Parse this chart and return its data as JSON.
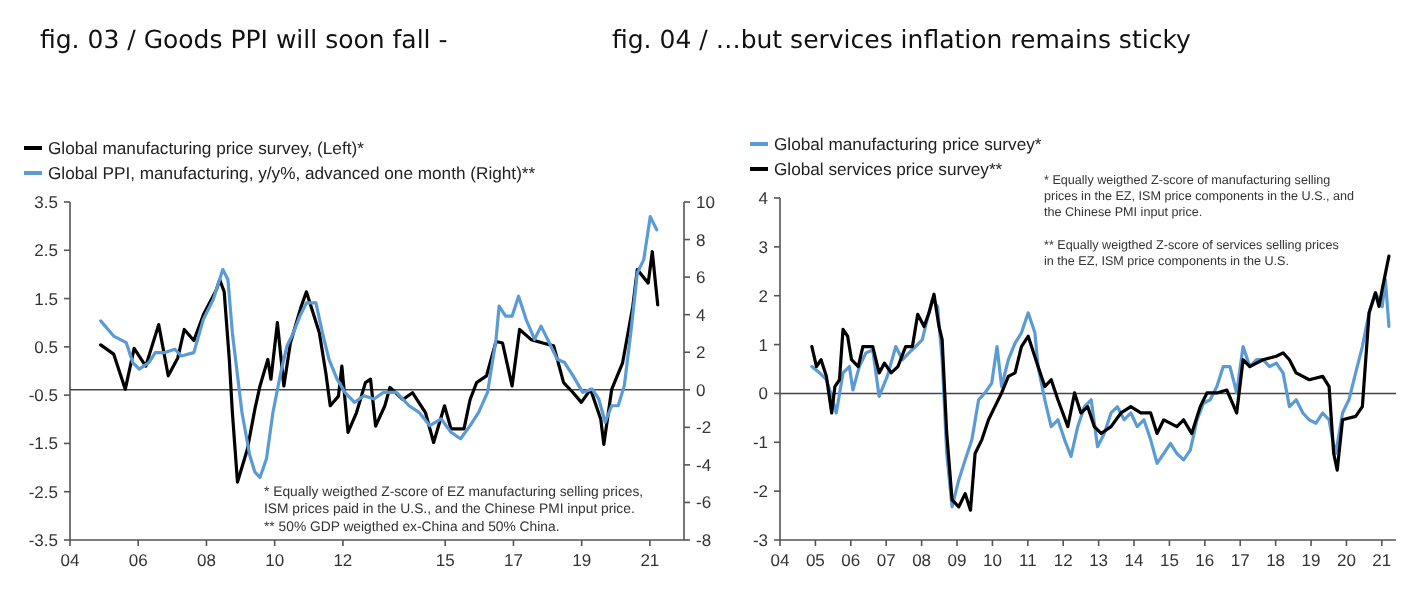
{
  "chart_data": [
    {
      "type": "line",
      "title": "fig. 03 / Goods PPI will soon fall -",
      "xlim": [
        2004,
        2022
      ],
      "xticks": [
        {
          "value": 2004,
          "label": "04"
        },
        {
          "value": 2006,
          "label": "06"
        },
        {
          "value": 2008,
          "label": "08"
        },
        {
          "value": 2010,
          "label": "10"
        },
        {
          "value": 2012,
          "label": "12"
        },
        {
          "value": 2015,
          "label": "15"
        },
        {
          "value": 2017,
          "label": "17"
        },
        {
          "value": 2019,
          "label": "19"
        },
        {
          "value": 2021,
          "label": "21"
        }
      ],
      "ylim": [
        -3.5,
        3.5
      ],
      "yticks": [
        -3.5,
        -2.5,
        -1.5,
        -0.5,
        0.5,
        1.5,
        2.5,
        3.5
      ],
      "y2lim": [
        -8,
        10
      ],
      "y2ticks": [
        -8,
        -6,
        -4,
        -2,
        0,
        2,
        4,
        6,
        8,
        10
      ],
      "legend": "top left",
      "ref_lines": [
        {
          "axis": "y2",
          "value": 0
        }
      ],
      "annotations": [
        "* Equally weigthed Z-score of EZ manufacturing selling prices, ISM prices paid in the U.S., and the Chinese PMI input price.",
        "** 50% GDP weigthed ex-China and 50% China."
      ],
      "series": [
        {
          "name": "Global manufacturing price survey, (Left)*",
          "color": "#000000",
          "x": [
            2004.9,
            2005.28,
            2005.62,
            2005.88,
            2006.22,
            2006.6,
            2006.88,
            2007.16,
            2007.35,
            2007.63,
            2007.92,
            2008.29,
            2008.39,
            2008.52,
            2008.67,
            2008.76,
            2008.91,
            2009.2,
            2009.42,
            2009.57,
            2009.8,
            2009.89,
            2010.08,
            2010.27,
            2010.46,
            2010.78,
            2010.93,
            2011.31,
            2011.5,
            2011.63,
            2011.87,
            2011.97,
            2012.15,
            2012.4,
            2012.66,
            2012.81,
            2012.96,
            2013.23,
            2013.38,
            2013.76,
            2014.04,
            2014.42,
            2014.66,
            2014.98,
            2015.17,
            2015.55,
            2015.73,
            2015.92,
            2016.21,
            2016.49,
            2016.68,
            2016.96,
            2017.18,
            2017.52,
            2017.86,
            2018.18,
            2018.47,
            2018.75,
            2018.99,
            2019.26,
            2019.56,
            2019.65,
            2019.88,
            2020.2,
            2020.5,
            2020.63,
            2020.95,
            2021.07,
            2021.23
          ],
          "values": [
            0.54,
            0.35,
            -0.38,
            0.47,
            0.1,
            0.96,
            -0.1,
            0.27,
            0.86,
            0.63,
            1.18,
            1.68,
            1.89,
            1.64,
            0.24,
            -0.86,
            -2.3,
            -1.62,
            -0.79,
            -0.31,
            0.24,
            -0.17,
            1.0,
            -0.31,
            0.58,
            1.34,
            1.64,
            0.79,
            -0.04,
            -0.72,
            -0.52,
            0.1,
            -1.27,
            -0.86,
            -0.24,
            -0.17,
            -1.14,
            -0.72,
            -0.34,
            -0.59,
            -0.45,
            -0.86,
            -1.48,
            -0.72,
            -1.2,
            -1.2,
            -0.59,
            -0.24,
            -0.1,
            0.61,
            0.58,
            -0.31,
            0.86,
            0.65,
            0.58,
            0.52,
            -0.24,
            -0.45,
            -0.65,
            -0.38,
            -1.0,
            -1.52,
            -0.38,
            0.17,
            1.34,
            2.1,
            1.82,
            2.47,
            1.37
          ]
        },
        {
          "name": "Global PPI, manufacturing, y/y%, advanced one month (Right)**",
          "color": "#5b9bd5",
          "axis": "y2",
          "x": [
            2004.9,
            2005.28,
            2005.65,
            2005.84,
            2006.03,
            2006.31,
            2006.5,
            2006.78,
            2007.07,
            2007.26,
            2007.63,
            2007.91,
            2008.2,
            2008.48,
            2008.63,
            2008.76,
            2009.04,
            2009.27,
            2009.42,
            2009.57,
            2009.76,
            2009.95,
            2010.18,
            2010.36,
            2010.55,
            2010.74,
            2010.93,
            2011.21,
            2011.4,
            2011.59,
            2011.83,
            2012.06,
            2012.34,
            2012.62,
            2012.91,
            2013.19,
            2013.57,
            2013.94,
            2014.23,
            2014.55,
            2014.88,
            2015.17,
            2015.45,
            2015.73,
            2015.98,
            2016.24,
            2016.49,
            2016.58,
            2016.77,
            2016.96,
            2017.15,
            2017.37,
            2017.62,
            2017.81,
            2018.0,
            2018.28,
            2018.5,
            2018.75,
            2019.03,
            2019.31,
            2019.5,
            2019.69,
            2019.88,
            2020.07,
            2020.25,
            2020.44,
            2020.63,
            2020.82,
            2021.01,
            2021.2
          ],
          "values": [
            3.67,
            2.86,
            2.51,
            1.45,
            1.1,
            1.45,
            1.98,
            1.98,
            2.16,
            1.8,
            1.98,
            3.75,
            4.81,
            6.4,
            5.87,
            3.04,
            -1.2,
            -3.5,
            -4.38,
            -4.66,
            -3.67,
            -1.2,
            0.92,
            2.33,
            3.04,
            3.92,
            4.63,
            4.63,
            3.04,
            1.63,
            0.57,
            -0.14,
            -0.67,
            -0.32,
            -0.49,
            -0.14,
            -0.14,
            -0.85,
            -1.2,
            -1.91,
            -1.55,
            -2.26,
            -2.61,
            -1.91,
            -1.2,
            -0.14,
            2.69,
            4.45,
            3.92,
            3.92,
            4.98,
            3.75,
            2.69,
            3.39,
            2.69,
            1.63,
            1.45,
            0.74,
            -0.14,
            0.04,
            -0.49,
            -1.73,
            -0.85,
            -0.85,
            0.21,
            3.04,
            6.22,
            6.93,
            9.22,
            8.52
          ]
        }
      ]
    },
    {
      "type": "line",
      "title": "fig. 04 / …but services inflation remains sticky",
      "xlim": [
        2004,
        2021.4
      ],
      "xticks": [
        {
          "value": 2004,
          "label": "04"
        },
        {
          "value": 2005,
          "label": "05"
        },
        {
          "value": 2006,
          "label": "06"
        },
        {
          "value": 2007,
          "label": "07"
        },
        {
          "value": 2008,
          "label": "08"
        },
        {
          "value": 2009,
          "label": "09"
        },
        {
          "value": 2010,
          "label": "10"
        },
        {
          "value": 2011,
          "label": "11"
        },
        {
          "value": 2012,
          "label": "12"
        },
        {
          "value": 2013,
          "label": "13"
        },
        {
          "value": 2014,
          "label": "14"
        },
        {
          "value": 2015,
          "label": "15"
        },
        {
          "value": 2016,
          "label": "16"
        },
        {
          "value": 2017,
          "label": "17"
        },
        {
          "value": 2018,
          "label": "18"
        },
        {
          "value": 2019,
          "label": "19"
        },
        {
          "value": 2020,
          "label": "20"
        },
        {
          "value": 2021,
          "label": "21"
        }
      ],
      "ylim": [
        -3,
        4
      ],
      "yticks": [
        -3,
        -2,
        -1,
        0,
        1,
        2,
        3,
        4
      ],
      "legend": "top left",
      "ref_lines": [
        {
          "axis": "y",
          "value": 0
        }
      ],
      "annotations": [
        "* Equally weigthed Z-score of manufacturing selling prices in the EZ, ISM price components in the U.S., and the Chinese PMI input price.",
        "** Equally weigthed Z-score of services selling prices in the EZ, ISM price components in the U.S."
      ],
      "series": [
        {
          "name": "Global manufacturing price survey*",
          "color": "#5b9bd5",
          "x": [
            2004.9,
            2005.12,
            2005.31,
            2005.46,
            2005.59,
            2005.78,
            2005.96,
            2006.06,
            2006.24,
            2006.43,
            2006.62,
            2006.8,
            2007.03,
            2007.27,
            2007.46,
            2007.64,
            2007.83,
            2008.02,
            2008.11,
            2008.3,
            2008.45,
            2008.58,
            2008.71,
            2008.86,
            2009.05,
            2009.23,
            2009.42,
            2009.61,
            2009.79,
            2009.98,
            2010.13,
            2010.26,
            2010.45,
            2010.64,
            2010.82,
            2011.01,
            2011.2,
            2011.29,
            2011.48,
            2011.66,
            2011.85,
            2012.04,
            2012.22,
            2012.41,
            2012.6,
            2012.79,
            2012.97,
            2013.16,
            2013.35,
            2013.53,
            2013.72,
            2013.91,
            2014.09,
            2014.28,
            2014.47,
            2014.65,
            2014.84,
            2015.03,
            2015.21,
            2015.4,
            2015.59,
            2015.78,
            2015.96,
            2016.15,
            2016.34,
            2016.52,
            2016.71,
            2016.9,
            2017.08,
            2017.27,
            2017.46,
            2017.64,
            2017.83,
            2018.02,
            2018.21,
            2018.39,
            2018.58,
            2018.77,
            2018.95,
            2019.14,
            2019.33,
            2019.51,
            2019.61,
            2019.7,
            2019.89,
            2020.07,
            2020.26,
            2020.45,
            2020.64,
            2020.82,
            2021.01,
            2021.1,
            2021.2
          ],
          "values": [
            0.55,
            0.42,
            0.28,
            -0.06,
            -0.4,
            0.42,
            0.55,
            0.07,
            0.55,
            0.83,
            0.89,
            -0.06,
            0.35,
            0.96,
            0.69,
            0.83,
            0.96,
            1.1,
            1.37,
            1.92,
            1.78,
            0.69,
            -1.23,
            -2.32,
            -1.77,
            -1.36,
            -0.95,
            -0.13,
            0.01,
            0.21,
            0.96,
            0.14,
            0.69,
            1.03,
            1.24,
            1.65,
            1.24,
            0.55,
            -0.13,
            -0.68,
            -0.54,
            -0.95,
            -1.29,
            -0.68,
            -0.27,
            -0.13,
            -1.09,
            -0.82,
            -0.4,
            -0.27,
            -0.54,
            -0.4,
            -0.68,
            -0.54,
            -0.95,
            -1.43,
            -1.23,
            -1.02,
            -1.23,
            -1.36,
            -1.16,
            -0.54,
            -0.2,
            -0.13,
            0.14,
            0.55,
            0.55,
            0.01,
            0.96,
            0.55,
            0.69,
            0.69,
            0.55,
            0.62,
            0.42,
            -0.27,
            -0.13,
            -0.4,
            -0.54,
            -0.61,
            -0.4,
            -0.54,
            -0.95,
            -1.23,
            -0.4,
            -0.13,
            0.42,
            0.96,
            1.65,
            2.06,
            1.78,
            2.33,
            1.37
          ]
        },
        {
          "name": "Global services price survey**",
          "color": "#000000",
          "x": [
            2004.9,
            2005.03,
            2005.16,
            2005.31,
            2005.46,
            2005.55,
            2005.68,
            2005.78,
            2005.91,
            2006.02,
            2006.21,
            2006.34,
            2006.62,
            2006.8,
            2006.95,
            2007.14,
            2007.33,
            2007.55,
            2007.74,
            2007.89,
            2008.07,
            2008.21,
            2008.35,
            2008.49,
            2008.58,
            2008.71,
            2008.86,
            2009.05,
            2009.23,
            2009.38,
            2009.51,
            2009.7,
            2009.89,
            2010.07,
            2010.26,
            2010.45,
            2010.64,
            2010.82,
            2011.01,
            2011.29,
            2011.48,
            2011.66,
            2011.85,
            2012.13,
            2012.32,
            2012.5,
            2012.69,
            2012.88,
            2013.07,
            2013.35,
            2013.63,
            2013.91,
            2014.19,
            2014.47,
            2014.65,
            2014.84,
            2015.21,
            2015.4,
            2015.63,
            2015.87,
            2016.06,
            2016.34,
            2016.62,
            2016.9,
            2017.08,
            2017.27,
            2017.64,
            2018.02,
            2018.21,
            2018.39,
            2018.58,
            2018.95,
            2019.33,
            2019.51,
            2019.64,
            2019.74,
            2019.89,
            2020.26,
            2020.45,
            2020.64,
            2020.82,
            2020.92,
            2021.01,
            2021.2
          ],
          "values": [
            0.96,
            0.55,
            0.69,
            0.35,
            -0.4,
            0.14,
            0.28,
            1.31,
            1.17,
            0.69,
            0.55,
            0.96,
            0.96,
            0.42,
            0.62,
            0.42,
            0.55,
            0.96,
            0.96,
            1.62,
            1.37,
            1.65,
            2.03,
            1.37,
            1.1,
            -0.82,
            -2.18,
            -2.32,
            -2.05,
            -2.39,
            -1.23,
            -0.95,
            -0.54,
            -0.27,
            0.01,
            0.35,
            0.42,
            0.96,
            1.17,
            0.55,
            0.14,
            0.28,
            -0.13,
            -0.68,
            0.01,
            -0.4,
            -0.27,
            -0.68,
            -0.82,
            -0.68,
            -0.4,
            -0.27,
            -0.4,
            -0.4,
            -0.82,
            -0.54,
            -0.68,
            -0.54,
            -0.82,
            -0.27,
            0.01,
            0.01,
            0.07,
            -0.4,
            0.69,
            0.55,
            0.69,
            0.76,
            0.83,
            0.69,
            0.42,
            0.28,
            0.35,
            0.14,
            -1.23,
            -1.57,
            -0.54,
            -0.47,
            -0.27,
            1.65,
            2.06,
            1.78,
            2.13,
            2.81
          ]
        }
      ]
    }
  ]
}
